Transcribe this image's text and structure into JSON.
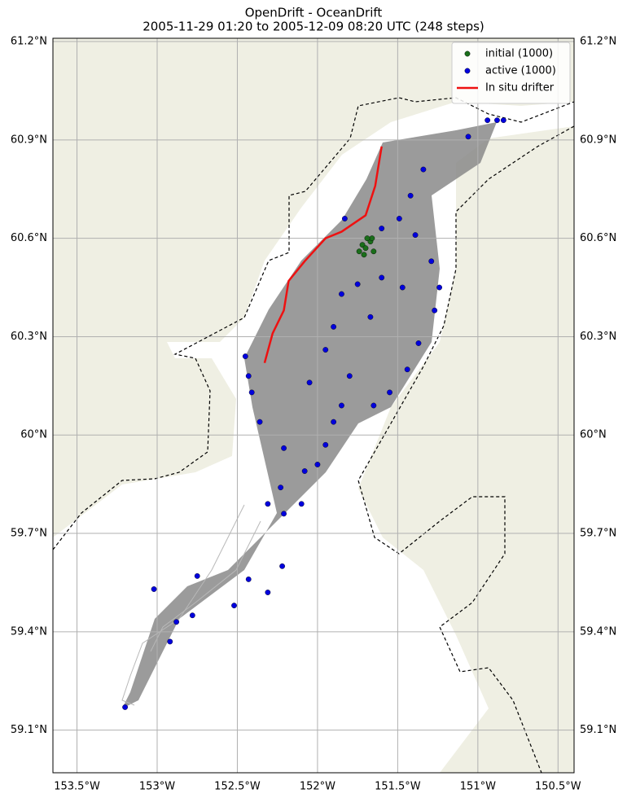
{
  "chart_data": {
    "type": "scatter",
    "title": "OpenDrift - OceanDrift",
    "subtitle": "2005-11-29 01:20 to 2005-12-09 08:20 UTC (248 steps)",
    "xlim": [
      -153.65,
      -150.4
    ],
    "ylim": [
      58.97,
      61.21
    ],
    "xticks": [
      {
        "value": -153.5,
        "label": "153.5°W"
      },
      {
        "value": -153,
        "label": "153°W"
      },
      {
        "value": -152.5,
        "label": "152.5°W"
      },
      {
        "value": -152,
        "label": "152°W"
      },
      {
        "value": -151.5,
        "label": "151.5°W"
      },
      {
        "value": -151,
        "label": "151°W"
      },
      {
        "value": -150.5,
        "label": "150.5°W"
      }
    ],
    "yticks": [
      {
        "value": 59.1,
        "label": "59.1°N"
      },
      {
        "value": 59.4,
        "label": "59.4°N"
      },
      {
        "value": 59.7,
        "label": "59.7°N"
      },
      {
        "value": 60,
        "label": "60°N"
      },
      {
        "value": 60.3,
        "label": "60.3°N"
      },
      {
        "value": 60.6,
        "label": "60.6°N"
      },
      {
        "value": 60.9,
        "label": "60.9°N"
      },
      {
        "value": 61.2,
        "label": "61.2°N"
      }
    ],
    "grid": true,
    "legend": "upper right",
    "series": [
      {
        "name": "initial (1000)",
        "type": "scatter",
        "color": "#1a6e1a",
        "x": [
          -151.72,
          -151.7,
          -151.67,
          -151.65,
          -151.71,
          -151.66,
          -151.74,
          -151.69
        ],
        "y": [
          60.58,
          60.57,
          60.59,
          60.56,
          60.55,
          60.6,
          60.56,
          60.6
        ]
      },
      {
        "name": "active (1000)",
        "type": "scatter",
        "color": "#0000dd",
        "x": [
          -151.06,
          -150.94,
          -150.88,
          -150.84,
          -151.34,
          -151.42,
          -151.49,
          -151.39,
          -151.29,
          -151.24,
          -151.27,
          -151.37,
          -151.44,
          -151.55,
          -151.65,
          -151.8,
          -151.9,
          -151.85,
          -151.75,
          -151.67,
          -151.95,
          -152.05,
          -151.85,
          -151.9,
          -151.95,
          -152.0,
          -152.08,
          -152.21,
          -152.23,
          -152.36,
          -152.41,
          -152.43,
          -152.45,
          -152.31,
          -152.21,
          -152.1,
          -152.22,
          -152.43,
          -152.75,
          -153.02,
          -152.31,
          -152.52,
          -152.78,
          -152.88,
          -152.92,
          -153.2,
          -151.83,
          -151.6,
          -151.6,
          -151.47
        ],
        "y": [
          60.91,
          60.96,
          60.96,
          60.96,
          60.81,
          60.73,
          60.66,
          60.61,
          60.53,
          60.45,
          60.38,
          60.28,
          60.2,
          60.13,
          60.09,
          60.18,
          60.33,
          60.43,
          60.46,
          60.36,
          60.26,
          60.16,
          60.09,
          60.04,
          59.97,
          59.91,
          59.89,
          59.96,
          59.84,
          60.04,
          60.13,
          60.18,
          60.24,
          59.79,
          59.76,
          59.79,
          59.6,
          59.56,
          59.57,
          59.53,
          59.52,
          59.48,
          59.45,
          59.43,
          59.37,
          59.17,
          60.66,
          60.63,
          60.48,
          60.45
        ]
      },
      {
        "name": "In situ drifter",
        "type": "line",
        "color": "#ee1111",
        "x": [
          -151.6,
          -151.64,
          -151.7,
          -151.85,
          -151.95,
          -152.08,
          -152.18,
          -152.21,
          -152.28,
          -152.33
        ],
        "y": [
          60.88,
          60.76,
          60.67,
          60.62,
          60.6,
          60.53,
          60.47,
          60.38,
          60.31,
          60.22
        ]
      }
    ]
  }
}
